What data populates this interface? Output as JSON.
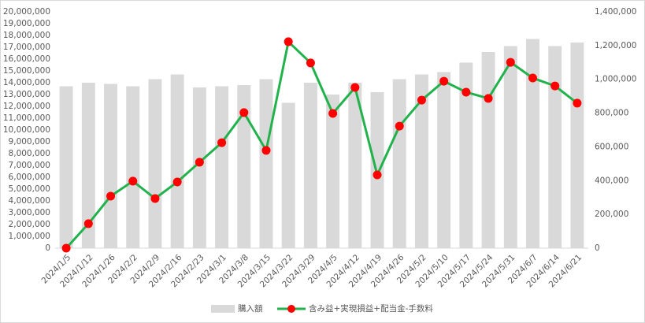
{
  "chart_data": {
    "type": "bar-line",
    "categories": [
      "2024/1/5",
      "2024/1/12",
      "2024/1/26",
      "2024/2/2",
      "2024/2/9",
      "2024/2/16",
      "2024/2/23",
      "2024/3/1",
      "2024/3/8",
      "2024/3/15",
      "2024/3/22",
      "2024/3/29",
      "2024/4/5",
      "2024/4/12",
      "2024/4/19",
      "2024/4/26",
      "2024/5/2",
      "2024/5/10",
      "2024/5/17",
      "2024/5/24",
      "2024/5/31",
      "2024/6/7",
      "2024/6/14",
      "2024/6/21"
    ],
    "series": [
      {
        "name": "購入額",
        "type": "bar",
        "color": "#d9d9d9",
        "axis": "y",
        "values": [
          13700000,
          14000000,
          13900000,
          13700000,
          14300000,
          14700000,
          13600000,
          13700000,
          13800000,
          14300000,
          12300000,
          14000000,
          13000000,
          14000000,
          13200000,
          14300000,
          14700000,
          14900000,
          15700000,
          16600000,
          17100000,
          17700000,
          17100000,
          17400000
        ]
      },
      {
        "name": "含み益+実現損益+配当金-手数料",
        "type": "line",
        "color": "#22b24c",
        "marker_color": "#ff0000",
        "axis": "y2",
        "values": [
          0,
          145000,
          308000,
          397000,
          294000,
          392000,
          509000,
          625000,
          803000,
          579000,
          1223000,
          1097000,
          798000,
          952000,
          434000,
          723000,
          877000,
          989000,
          924000,
          887000,
          1101000,
          1008000,
          961000,
          859000
        ]
      }
    ],
    "ylim": [
      0,
      20000000
    ],
    "yticks": [
      {
        "value": 0,
        "label": "0"
      },
      {
        "value": 1000000,
        "label": "1,000,000"
      },
      {
        "value": 2000000,
        "label": "2,000,000"
      },
      {
        "value": 3000000,
        "label": "3,000,000"
      },
      {
        "value": 4000000,
        "label": "4,000,000"
      },
      {
        "value": 5000000,
        "label": "5,000,000"
      },
      {
        "value": 6000000,
        "label": "6,000,000"
      },
      {
        "value": 7000000,
        "label": "7,000,000"
      },
      {
        "value": 8000000,
        "label": "8,000,000"
      },
      {
        "value": 9000000,
        "label": "9,000,000"
      },
      {
        "value": 10000000,
        "label": "10,000,000"
      },
      {
        "value": 11000000,
        "label": "11,000,000"
      },
      {
        "value": 12000000,
        "label": "12,000,000"
      },
      {
        "value": 13000000,
        "label": "13,000,000"
      },
      {
        "value": 14000000,
        "label": "14,000,000"
      },
      {
        "value": 15000000,
        "label": "15,000,000"
      },
      {
        "value": 16000000,
        "label": "16,000,000"
      },
      {
        "value": 17000000,
        "label": "17,000,000"
      },
      {
        "value": 18000000,
        "label": "18,000,000"
      },
      {
        "value": 19000000,
        "label": "19,000,000"
      },
      {
        "value": 20000000,
        "label": "20,000,000"
      }
    ],
    "y2lim": [
      0,
      1400000
    ],
    "y2ticks": [
      {
        "value": 0,
        "label": "0"
      },
      {
        "value": 200000,
        "label": "200,000"
      },
      {
        "value": 400000,
        "label": "400,000"
      },
      {
        "value": 600000,
        "label": "600,000"
      },
      {
        "value": 800000,
        "label": "800,000"
      },
      {
        "value": 1000000,
        "label": "1,000,000"
      },
      {
        "value": 1200000,
        "label": "1,200,000"
      },
      {
        "value": 1400000,
        "label": "1,400,000"
      }
    ],
    "grid": false,
    "legend": "bottom"
  }
}
